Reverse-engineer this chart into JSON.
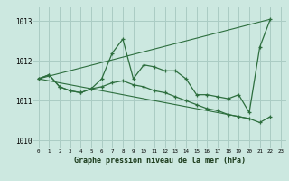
{
  "background_color": "#cce8e0",
  "grid_color": "#aaccc4",
  "line_color": "#2d6e3e",
  "title": "Graphe pression niveau de la mer (hPa)",
  "ylim": [
    1009.8,
    1013.35
  ],
  "xlim": [
    -0.5,
    23.5
  ],
  "yticks": [
    1010,
    1011,
    1012,
    1013
  ],
  "xticks": [
    0,
    1,
    2,
    3,
    4,
    5,
    6,
    7,
    8,
    9,
    10,
    11,
    12,
    13,
    14,
    15,
    16,
    17,
    18,
    19,
    20,
    21,
    22,
    23
  ],
  "line1_x": [
    0,
    1,
    2,
    3,
    4,
    5,
    6,
    7,
    8,
    9,
    10,
    11,
    12,
    13,
    14,
    15,
    16,
    17,
    18,
    19,
    20,
    21,
    22
  ],
  "line1_y": [
    1011.55,
    1011.65,
    1011.35,
    1011.25,
    1011.2,
    1011.3,
    1011.55,
    1012.2,
    1012.55,
    1011.55,
    1011.9,
    1011.85,
    1011.75,
    1011.75,
    1011.55,
    1011.15,
    1011.15,
    1011.1,
    1011.05,
    1011.15,
    1010.7,
    1012.35,
    1013.05
  ],
  "line2_x": [
    0,
    1,
    2,
    3,
    4,
    5,
    6,
    7,
    8,
    9,
    10,
    11,
    12,
    13,
    14,
    15,
    16,
    17,
    18,
    19,
    20,
    21,
    22
  ],
  "line2_y": [
    1011.55,
    1011.65,
    1011.35,
    1011.25,
    1011.2,
    1011.3,
    1011.35,
    1011.45,
    1011.5,
    1011.4,
    1011.35,
    1011.25,
    1011.2,
    1011.1,
    1011.0,
    1010.9,
    1010.8,
    1010.75,
    1010.65,
    1010.6,
    1010.55,
    1010.45,
    1010.6
  ],
  "line3_x": [
    0,
    22
  ],
  "line3_y": [
    1011.55,
    1013.05
  ],
  "line4_x": [
    0,
    20
  ],
  "line4_y": [
    1011.55,
    1010.55
  ]
}
